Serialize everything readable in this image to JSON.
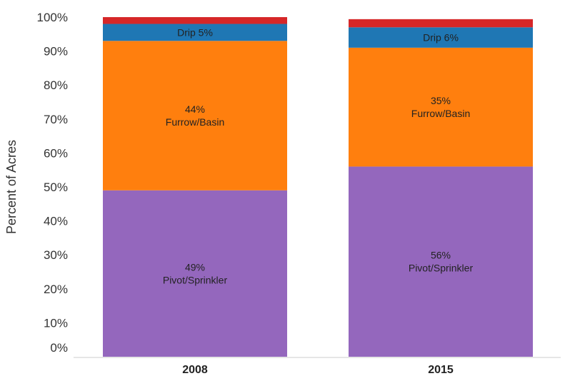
{
  "chart_data": {
    "type": "bar",
    "stacked": true,
    "normalized": true,
    "ylabel": "Percent of Acres",
    "ylim": [
      0,
      100
    ],
    "yticks": [
      "0%",
      "10%",
      "20%",
      "30%",
      "40%",
      "50%",
      "60%",
      "70%",
      "80%",
      "90%",
      "100%"
    ],
    "categories": [
      "2008",
      "2015"
    ],
    "series": [
      {
        "key": "pivot",
        "values": [
          49,
          56
        ],
        "color": "#9467bd",
        "labels": [
          [
            "49%",
            "Pivot/Sprinkler"
          ],
          [
            "56%",
            "Pivot/Sprinkler"
          ]
        ]
      },
      {
        "key": "furrow",
        "values": [
          44,
          35
        ],
        "color": "#ff7f0e",
        "labels": [
          [
            "44%",
            "Furrow/Basin"
          ],
          [
            "35%",
            "Furrow/Basin"
          ]
        ]
      },
      {
        "key": "drip",
        "values": [
          5,
          6
        ],
        "color": "#1f77b4",
        "labels": [
          [
            "Drip 5%"
          ],
          [
            "Drip  6%"
          ]
        ]
      },
      {
        "key": "other",
        "values": [
          2,
          2.4
        ],
        "color": "#d62728",
        "labels": [
          [],
          []
        ]
      }
    ],
    "grid": false,
    "legend": "none"
  }
}
